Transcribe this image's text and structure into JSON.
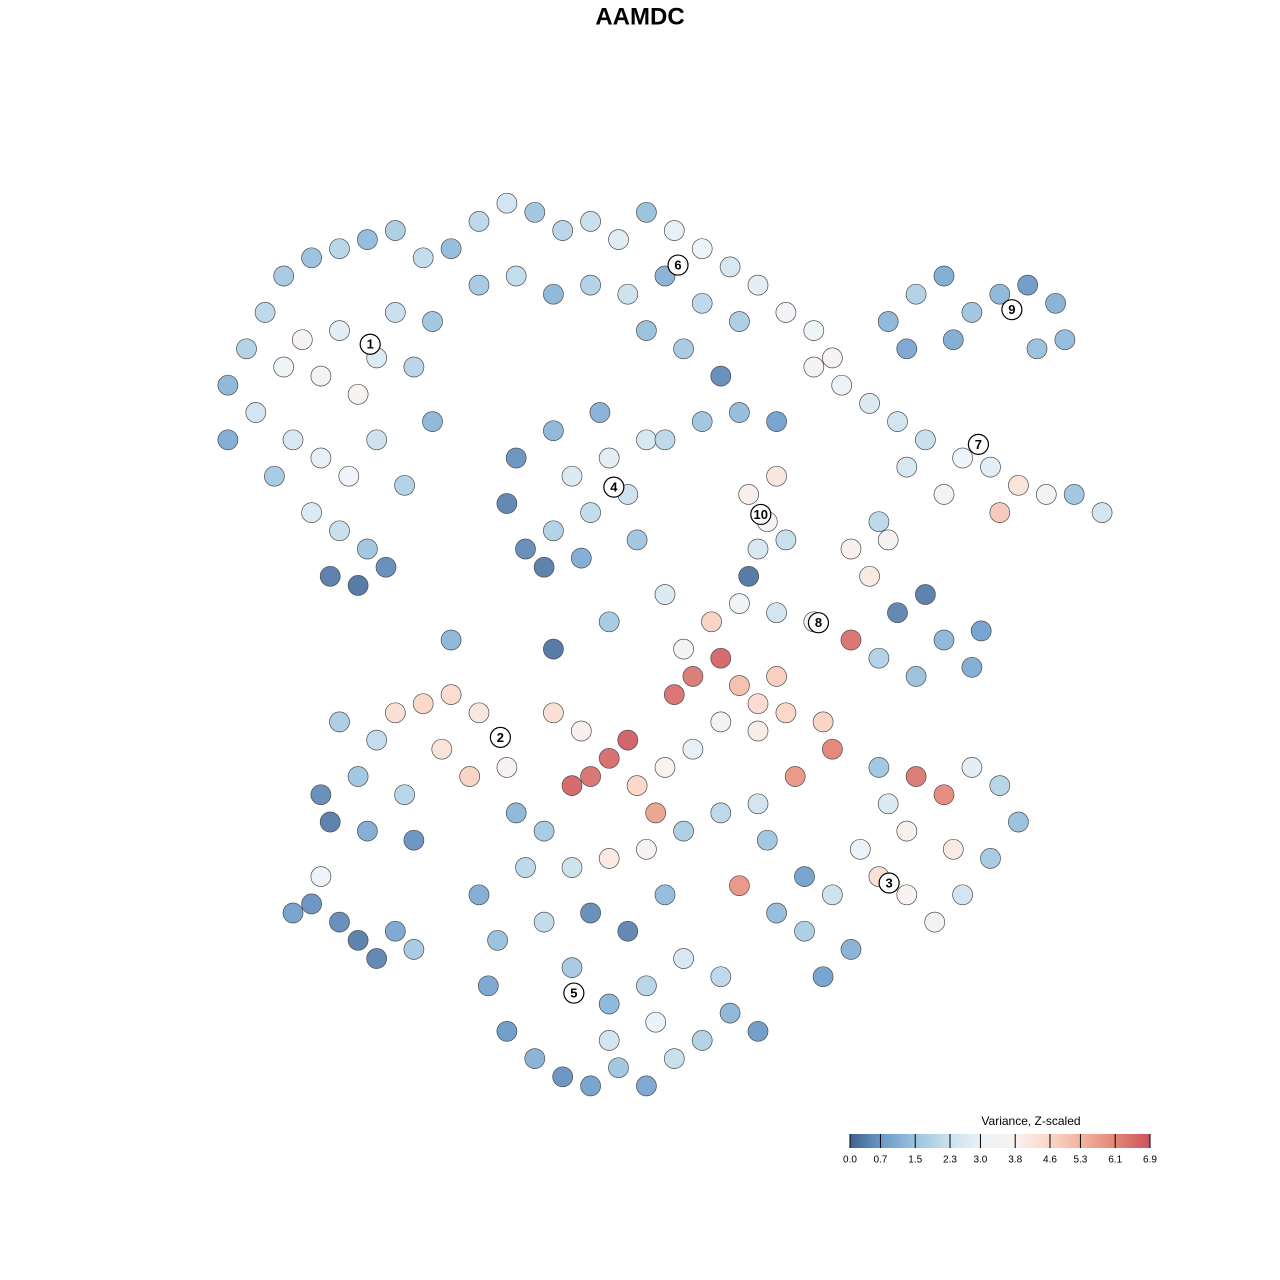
{
  "chart_data": {
    "type": "scatter",
    "title": "AAMDC",
    "xlim": [
      0,
      100
    ],
    "ylim": [
      0,
      100
    ],
    "x": [
      3,
      5,
      7,
      9,
      12,
      15,
      18,
      21,
      24,
      6,
      9,
      11,
      13,
      15,
      17,
      19,
      21,
      23,
      25,
      10,
      13,
      16,
      19,
      22,
      12,
      15,
      18,
      14,
      17,
      20,
      8,
      3,
      25,
      27,
      30,
      33,
      36,
      39,
      42,
      45,
      48,
      51,
      54,
      57,
      60,
      63,
      66,
      30,
      34,
      38,
      42,
      46,
      50,
      54,
      58,
      48,
      52,
      68,
      34,
      33,
      35,
      38,
      40,
      42,
      44,
      46,
      47,
      41,
      38,
      43,
      48,
      37,
      59,
      62,
      61,
      60,
      63,
      50,
      54,
      58,
      62,
      74,
      77,
      80,
      83,
      86,
      89,
      92,
      93,
      90,
      81,
      76,
      66,
      69,
      72,
      75,
      78,
      82,
      85,
      88,
      91,
      94,
      97,
      86,
      80,
      76,
      73,
      70,
      72,
      74,
      52,
      55,
      58,
      62,
      66,
      70,
      75,
      78,
      80,
      83,
      84,
      77,
      73,
      53,
      56,
      51,
      58,
      62,
      60,
      13,
      14,
      17,
      19,
      21,
      24,
      27,
      30,
      26,
      29,
      33,
      22,
      18,
      23,
      15,
      38,
      41,
      44,
      46,
      42,
      40,
      47,
      50,
      53,
      56,
      60,
      63,
      67,
      68,
      64,
      60,
      56,
      52,
      48,
      44,
      40,
      37,
      34,
      58,
      61,
      65,
      49,
      62,
      65,
      68,
      71,
      74,
      77,
      80,
      83,
      86,
      88,
      85,
      82,
      79,
      76,
      73,
      70,
      67,
      76,
      81,
      73,
      30,
      32,
      31,
      33,
      36,
      39,
      42,
      45,
      48,
      51,
      54,
      57,
      60,
      56,
      52,
      48,
      44,
      40,
      37,
      42,
      46,
      50,
      35,
      44,
      49,
      10,
      12,
      15,
      17,
      19,
      21,
      23,
      13,
      38,
      27,
      44,
      50,
      59,
      56
    ],
    "y": [
      78,
      82,
      86,
      90,
      92,
      93,
      94,
      95,
      92,
      75,
      80,
      83,
      79,
      84,
      77,
      81,
      86,
      80,
      85,
      72,
      70,
      68,
      72,
      67,
      64,
      62,
      60,
      57,
      56,
      58,
      68,
      72,
      74,
      93,
      96,
      98,
      97,
      95,
      96,
      94,
      97,
      95,
      93,
      91,
      89,
      86,
      84,
      89,
      90,
      88,
      89,
      88,
      90,
      87,
      85,
      84,
      82,
      81,
      70,
      65,
      60,
      73,
      68,
      64,
      70,
      66,
      61,
      59,
      62,
      75,
      72,
      58,
      66,
      68,
      63,
      60,
      61,
      72,
      74,
      75,
      74,
      85,
      88,
      90,
      86,
      88,
      89,
      87,
      83,
      82,
      83,
      82,
      80,
      78,
      76,
      74,
      72,
      70,
      69,
      67,
      66,
      66,
      64,
      64,
      66,
      69,
      63,
      60,
      57,
      61,
      49,
      52,
      54,
      53,
      52,
      50,
      53,
      55,
      50,
      47,
      51,
      46,
      48,
      46,
      48,
      44,
      45,
      46,
      43,
      33,
      30,
      35,
      39,
      42,
      43,
      44,
      42,
      38,
      35,
      36,
      33,
      29,
      28,
      41,
      42,
      40,
      37,
      39,
      35,
      34,
      34,
      36,
      38,
      41,
      40,
      42,
      41,
      38,
      35,
      32,
      31,
      29,
      27,
      26,
      25,
      29,
      31,
      23,
      28,
      24,
      31,
      20,
      18,
      22,
      27,
      32,
      35,
      33,
      36,
      34,
      30,
      26,
      22,
      19,
      22,
      24,
      16,
      13,
      29,
      27,
      36,
      22,
      17,
      12,
      7,
      4,
      2,
      1,
      3,
      1,
      4,
      6,
      9,
      7,
      13,
      15,
      12,
      10,
      14,
      19,
      20,
      18,
      22,
      25,
      6,
      8,
      20,
      21,
      19,
      17,
      15,
      18,
      16,
      24,
      49,
      50,
      52,
      55,
      57,
      79
    ],
    "values": [
      1.2,
      1.8,
      2.0,
      1.6,
      1.4,
      1.9,
      1.3,
      1.7,
      2.1,
      2.4,
      3.2,
      3.6,
      3.4,
      2.8,
      3.7,
      2.6,
      2.2,
      1.9,
      1.5,
      2.5,
      2.9,
      3.1,
      2.3,
      1.8,
      2.6,
      2.2,
      1.5,
      0.3,
      0.2,
      0.5,
      1.6,
      1.0,
      1.2,
      1.3,
      2.0,
      2.4,
      1.5,
      1.9,
      2.2,
      2.7,
      1.4,
      2.9,
      3.1,
      2.5,
      2.8,
      3.3,
      3.2,
      1.6,
      2.1,
      1.2,
      1.8,
      2.3,
      1.1,
      2.0,
      1.7,
      1.4,
      1.6,
      3.6,
      0.6,
      0.4,
      0.5,
      1.2,
      2.6,
      2.1,
      2.8,
      2.3,
      1.5,
      1.0,
      1.8,
      1.1,
      2.5,
      0.3,
      3.9,
      4.2,
      3.7,
      2.5,
      2.2,
      2.0,
      1.5,
      1.3,
      0.8,
      1.2,
      1.8,
      1.0,
      1.5,
      1.2,
      0.7,
      1.1,
      1.3,
      1.4,
      1.0,
      0.9,
      3.4,
      3.0,
      2.6,
      2.4,
      2.2,
      3.1,
      2.8,
      4.3,
      3.5,
      1.5,
      2.4,
      4.9,
      3.3,
      2.5,
      2.0,
      3.9,
      4.1,
      3.6,
      3.5,
      4.7,
      3.2,
      2.4,
      3.0,
      6.5,
      0.4,
      0.3,
      1.2,
      1.0,
      0.8,
      1.4,
      1.8,
      6.4,
      6.7,
      6.5,
      5.1,
      4.8,
      4.5,
      0.5,
      0.3,
      1.5,
      2.1,
      4.4,
      4.6,
      4.5,
      4.2,
      4.3,
      4.7,
      3.6,
      1.9,
      1.0,
      0.6,
      1.7,
      4.4,
      3.9,
      6.6,
      6.8,
      6.5,
      6.7,
      4.6,
      3.8,
      2.9,
      3.5,
      4.0,
      4.6,
      4.7,
      6.2,
      5.9,
      2.4,
      2.0,
      1.7,
      3.6,
      4.1,
      2.3,
      1.6,
      1.2,
      5.9,
      1.5,
      0.8,
      5.7,
      1.3,
      1.7,
      2.3,
      3.0,
      2.6,
      6.4,
      6.1,
      2.8,
      1.9,
      1.4,
      1.6,
      2.4,
      3.4,
      3.7,
      4.4,
      1.1,
      0.8,
      3.9,
      4.1,
      1.5,
      1.0,
      1.4,
      0.9,
      0.7,
      1.1,
      0.6,
      0.8,
      1.5,
      0.9,
      2.2,
      1.8,
      1.2,
      0.7,
      2.0,
      2.5,
      1.9,
      1.2,
      1.6,
      2.1,
      0.5,
      0.4,
      1.3,
      2.0,
      2.4,
      3.0,
      0.8,
      0.6,
      0.5,
      0.3,
      0.4,
      0.9,
      1.6,
      3.1,
      0.2,
      1.2,
      1.6,
      2.6,
      0.2,
      0.5
    ],
    "annotations": [
      {
        "text": "1",
        "x": 18.3,
        "y": 82.5
      },
      {
        "text": "2",
        "x": 32.3,
        "y": 39.3
      },
      {
        "text": "3",
        "x": 74.1,
        "y": 23.3
      },
      {
        "text": "4",
        "x": 44.5,
        "y": 66.8
      },
      {
        "text": "5",
        "x": 40.2,
        "y": 11.2
      },
      {
        "text": "6",
        "x": 51.4,
        "y": 91.2
      },
      {
        "text": "7",
        "x": 83.7,
        "y": 71.5
      },
      {
        "text": "8",
        "x": 66.5,
        "y": 51.9
      },
      {
        "text": "9",
        "x": 87.3,
        "y": 86.3
      },
      {
        "text": "10",
        "x": 60.3,
        "y": 63.8
      }
    ],
    "colorbar": {
      "title": "Variance, Z-scaled",
      "clim": [
        0,
        6.9
      ],
      "ticks": [
        {
          "value": 0,
          "label": "0.0"
        },
        0.7,
        1.5,
        2.3,
        {
          "value": 3,
          "label": "3.0"
        },
        3.8,
        4.6,
        5.3,
        6.1,
        6.9
      ],
      "colors": [
        "#40618f",
        "#6c9ccb",
        "#9ec5e0",
        "#cbe1ee",
        "#ecf3f8",
        "#f9f1ee",
        "#fad6c7",
        "#f1b09c",
        "#e38474",
        "#cc535e"
      ]
    }
  }
}
